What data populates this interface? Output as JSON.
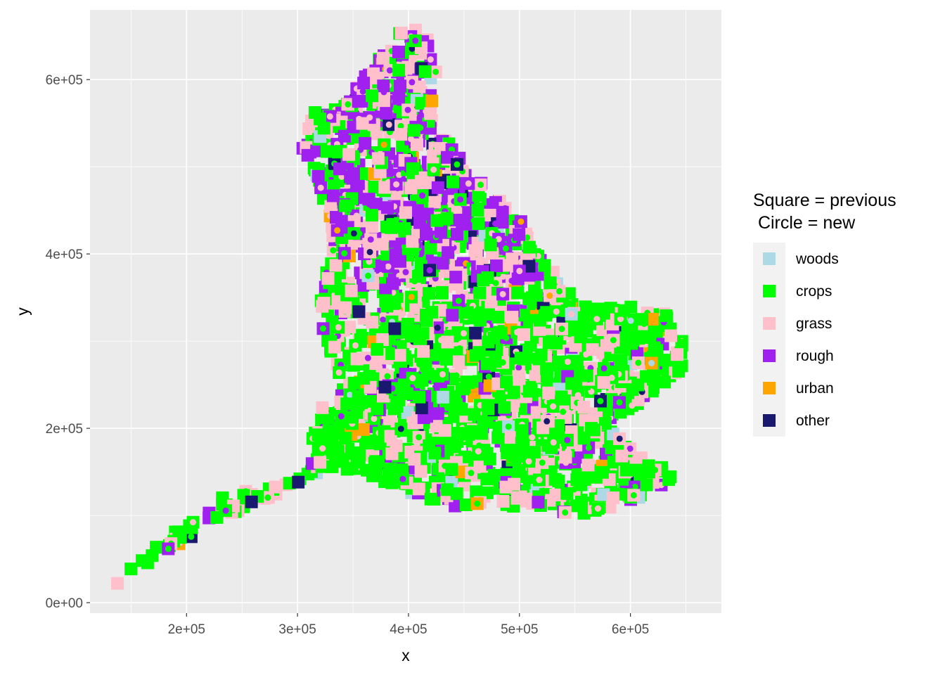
{
  "chart_data": {
    "type": "scatter",
    "title": "",
    "xlabel": "x",
    "ylabel": "y",
    "xlim": [
      113000,
      682000
    ],
    "ylim": [
      -12000,
      680000
    ],
    "x_ticks": [
      {
        "value": 200000,
        "label": "2e+05"
      },
      {
        "value": 300000,
        "label": "3e+05"
      },
      {
        "value": 400000,
        "label": "4e+05"
      },
      {
        "value": 500000,
        "label": "5e+05"
      },
      {
        "value": 600000,
        "label": "6e+05"
      }
    ],
    "y_ticks": [
      {
        "value": 0,
        "label": "0e+00"
      },
      {
        "value": 200000,
        "label": "2e+05"
      },
      {
        "value": 400000,
        "label": "4e+05"
      },
      {
        "value": 600000,
        "label": "6e+05"
      }
    ],
    "grid": true,
    "legend": {
      "title_line1": "Square = previous",
      "title_line2": " Circle = new",
      "position": "right",
      "entries": [
        {
          "label": "woods",
          "color": "#add8e6"
        },
        {
          "label": "crops",
          "color": "#00ff00"
        },
        {
          "label": "grass",
          "color": "#ffc0cb"
        },
        {
          "label": "rough",
          "color": "#a020f0"
        },
        {
          "label": "urban",
          "color": "#ffa500"
        },
        {
          "label": "other",
          "color": "#191970"
        }
      ]
    },
    "series": [
      {
        "marker": "square",
        "role": "previous"
      },
      {
        "marker": "circle",
        "role": "new"
      }
    ],
    "region_shape": [
      [
        135000,
        20000
      ],
      [
        175000,
        50000
      ],
      [
        210000,
        80000
      ],
      [
        255000,
        110000
      ],
      [
        300000,
        135000
      ],
      [
        340000,
        150000
      ],
      [
        360000,
        150000
      ],
      [
        400000,
        125000
      ],
      [
        440000,
        110000
      ],
      [
        500000,
        110000
      ],
      [
        560000,
        100000
      ],
      [
        620000,
        125000
      ],
      [
        645000,
        150000
      ],
      [
        610000,
        170000
      ],
      [
        580000,
        200000
      ],
      [
        620000,
        240000
      ],
      [
        648000,
        270000
      ],
      [
        652000,
        290000
      ],
      [
        635000,
        330000
      ],
      [
        600000,
        340000
      ],
      [
        560000,
        340000
      ],
      [
        530000,
        380000
      ],
      [
        505000,
        435000
      ],
      [
        470000,
        480000
      ],
      [
        440000,
        520000
      ],
      [
        420000,
        560000
      ],
      [
        425000,
        610000
      ],
      [
        420000,
        650000
      ],
      [
        405000,
        665000
      ],
      [
        385000,
        650000
      ],
      [
        365000,
        610000
      ],
      [
        340000,
        575000
      ],
      [
        310000,
        560000
      ],
      [
        300000,
        520000
      ],
      [
        318000,
        480000
      ],
      [
        330000,
        440000
      ],
      [
        328000,
        400000
      ],
      [
        318000,
        330000
      ],
      [
        338000,
        260000
      ],
      [
        320000,
        220000
      ],
      [
        305000,
        150000
      ],
      [
        265000,
        130000
      ],
      [
        235000,
        125000
      ],
      [
        215000,
        100000
      ],
      [
        185000,
        80000
      ],
      [
        165000,
        55000
      ],
      [
        138000,
        30000
      ]
    ],
    "color_weights": {
      "north": {
        "woods": 2,
        "crops": 25,
        "grass": 33,
        "rough": 35,
        "urban": 2,
        "other": 3
      },
      "south": {
        "woods": 2,
        "crops": 58,
        "grass": 28,
        "rough": 8,
        "urban": 2,
        "other": 2
      }
    },
    "point_count_estimate": 2400
  }
}
